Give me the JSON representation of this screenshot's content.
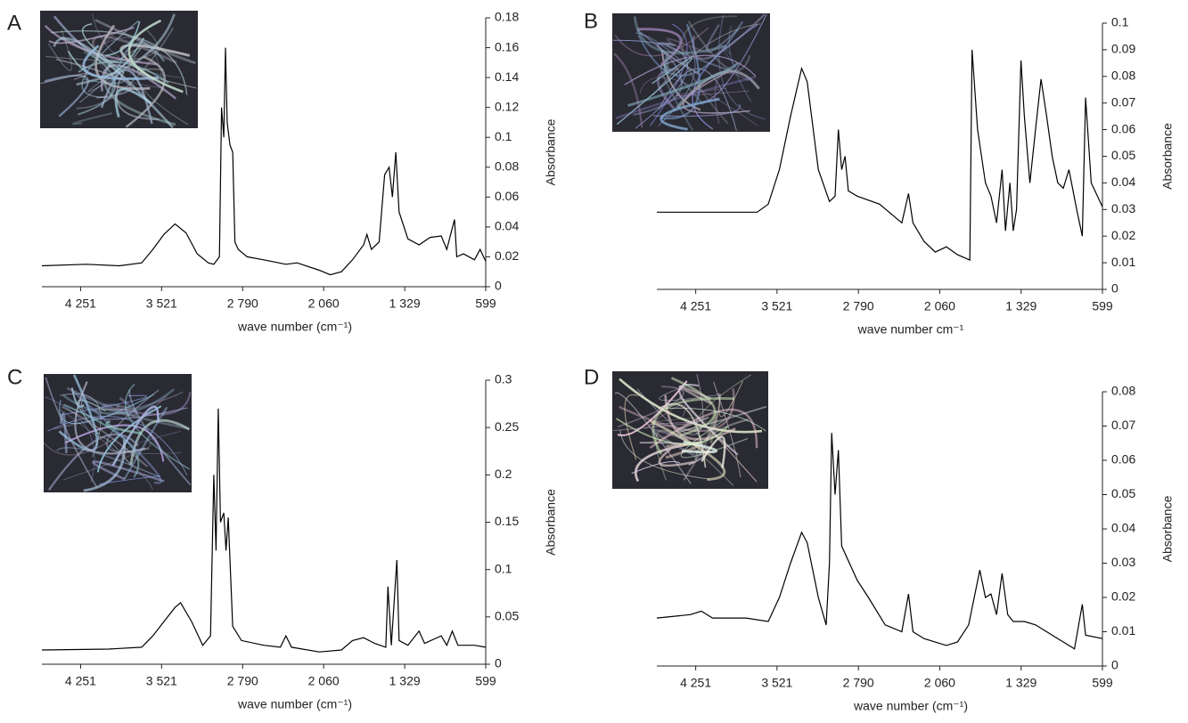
{
  "chart_data": [
    {
      "type": "line",
      "label": "A",
      "x_label": "wave number (cm⁻¹)",
      "y_label": "Absorbance",
      "color": "#000000",
      "xlim": [
        4600,
        599
      ],
      "ylim": [
        0,
        0.18
      ],
      "xticks": [
        {
          "value": 4251,
          "label": "4 251"
        },
        {
          "value": 3521,
          "label": "3 521"
        },
        {
          "value": 2790,
          "label": "2 790"
        },
        {
          "value": 2060,
          "label": "2 060"
        },
        {
          "value": 1329,
          "label": "1 329"
        },
        599
      ],
      "yticks": [
        0,
        0.02,
        0.04,
        0.06,
        0.08,
        0.1,
        0.12,
        0.14,
        0.16,
        0.18
      ],
      "x": [
        4600,
        4200,
        3900,
        3700,
        3600,
        3500,
        3400,
        3300,
        3200,
        3100,
        3050,
        3000,
        2980,
        2960,
        2945,
        2930,
        2905,
        2880,
        2860,
        2830,
        2750,
        2600,
        2400,
        2300,
        2100,
        2000,
        1900,
        1800,
        1700,
        1670,
        1630,
        1560,
        1510,
        1470,
        1440,
        1410,
        1380,
        1300,
        1200,
        1100,
        1000,
        950,
        880,
        860,
        800,
        700,
        650,
        599
      ],
      "values": [
        0.014,
        0.015,
        0.014,
        0.016,
        0.025,
        0.035,
        0.042,
        0.036,
        0.022,
        0.016,
        0.015,
        0.02,
        0.12,
        0.1,
        0.16,
        0.11,
        0.095,
        0.09,
        0.03,
        0.025,
        0.02,
        0.018,
        0.015,
        0.016,
        0.011,
        0.008,
        0.01,
        0.018,
        0.028,
        0.035,
        0.025,
        0.03,
        0.075,
        0.08,
        0.06,
        0.09,
        0.05,
        0.032,
        0.028,
        0.033,
        0.034,
        0.025,
        0.045,
        0.02,
        0.022,
        0.018,
        0.025,
        0.017
      ]
    },
    {
      "type": "line",
      "label": "B",
      "x_label": "wave number cm⁻¹",
      "y_label": "Absorbance",
      "color": "#000000",
      "xlim": [
        4600,
        599
      ],
      "ylim": [
        0,
        0.1
      ],
      "xticks": [
        {
          "value": 4251,
          "label": "4 251"
        },
        {
          "value": 3521,
          "label": "3 521"
        },
        {
          "value": 2790,
          "label": "2 790"
        },
        {
          "value": 2060,
          "label": "2 060"
        },
        {
          "value": 1329,
          "label": "1 329"
        },
        599
      ],
      "yticks": [
        0,
        0.01,
        0.02,
        0.03,
        0.04,
        0.05,
        0.06,
        0.07,
        0.08,
        0.09,
        0.1
      ],
      "x": [
        4600,
        4000,
        3700,
        3600,
        3500,
        3400,
        3300,
        3250,
        3150,
        3050,
        3000,
        2970,
        2940,
        2910,
        2880,
        2800,
        2600,
        2400,
        2340,
        2300,
        2200,
        2100,
        2000,
        1900,
        1790,
        1770,
        1720,
        1650,
        1600,
        1550,
        1500,
        1470,
        1430,
        1400,
        1370,
        1330,
        1300,
        1250,
        1200,
        1150,
        1100,
        1050,
        1000,
        950,
        900,
        830,
        780,
        750,
        700,
        599
      ],
      "values": [
        0.029,
        0.029,
        0.029,
        0.032,
        0.045,
        0.065,
        0.083,
        0.078,
        0.045,
        0.033,
        0.035,
        0.06,
        0.045,
        0.05,
        0.037,
        0.035,
        0.032,
        0.025,
        0.036,
        0.025,
        0.018,
        0.014,
        0.016,
        0.013,
        0.011,
        0.09,
        0.06,
        0.04,
        0.035,
        0.025,
        0.045,
        0.022,
        0.04,
        0.022,
        0.03,
        0.086,
        0.065,
        0.04,
        0.06,
        0.079,
        0.065,
        0.05,
        0.04,
        0.038,
        0.045,
        0.03,
        0.02,
        0.072,
        0.04,
        0.031
      ]
    },
    {
      "type": "line",
      "label": "C",
      "x_label": "wave number (cm⁻¹)",
      "y_label": "Absorbance",
      "color": "#000000",
      "xlim": [
        4600,
        599
      ],
      "ylim": [
        0,
        0.3
      ],
      "xticks": [
        {
          "value": 4251,
          "label": "4 251"
        },
        {
          "value": 3521,
          "label": "3 521"
        },
        {
          "value": 2790,
          "label": "2 790"
        },
        {
          "value": 2060,
          "label": "2 060"
        },
        {
          "value": 1329,
          "label": "1 329"
        },
        599
      ],
      "yticks": [
        0,
        0.05,
        0.1,
        0.15,
        0.2,
        0.25,
        0.3
      ],
      "x": [
        4600,
        4000,
        3700,
        3600,
        3500,
        3400,
        3350,
        3250,
        3150,
        3080,
        3050,
        3030,
        3010,
        2990,
        2960,
        2940,
        2920,
        2880,
        2800,
        2600,
        2450,
        2400,
        2350,
        2100,
        1900,
        1800,
        1700,
        1600,
        1500,
        1480,
        1450,
        1400,
        1380,
        1300,
        1200,
        1150,
        1000,
        950,
        900,
        850,
        700,
        599
      ],
      "values": [
        0.015,
        0.016,
        0.018,
        0.03,
        0.045,
        0.06,
        0.065,
        0.045,
        0.02,
        0.03,
        0.2,
        0.12,
        0.27,
        0.15,
        0.16,
        0.12,
        0.155,
        0.04,
        0.025,
        0.02,
        0.018,
        0.03,
        0.018,
        0.013,
        0.015,
        0.025,
        0.028,
        0.022,
        0.018,
        0.082,
        0.02,
        0.11,
        0.025,
        0.02,
        0.035,
        0.022,
        0.03,
        0.02,
        0.035,
        0.02,
        0.02,
        0.018
      ]
    },
    {
      "type": "line",
      "label": "D",
      "x_label": "wave number (cm⁻¹)",
      "y_label": "Absorbance",
      "color": "#000000",
      "xlim": [
        4600,
        599
      ],
      "ylim": [
        0,
        0.08
      ],
      "xticks": [
        {
          "value": 4251,
          "label": "4 251"
        },
        {
          "value": 3521,
          "label": "3 521"
        },
        {
          "value": 2790,
          "label": "2 790"
        },
        {
          "value": 2060,
          "label": "2 060"
        },
        {
          "value": 1329,
          "label": "1 329"
        },
        599
      ],
      "yticks": [
        0,
        0.01,
        0.02,
        0.03,
        0.04,
        0.05,
        0.06,
        0.07,
        0.08
      ],
      "x": [
        4600,
        4300,
        4200,
        4100,
        3800,
        3600,
        3500,
        3400,
        3300,
        3250,
        3150,
        3080,
        3050,
        3030,
        3000,
        2970,
        2940,
        2800,
        2700,
        2550,
        2400,
        2340,
        2300,
        2200,
        2000,
        1900,
        1800,
        1700,
        1650,
        1600,
        1550,
        1500,
        1450,
        1400,
        1300,
        1200,
        1100,
        1000,
        900,
        850,
        780,
        750,
        599
      ],
      "values": [
        0.014,
        0.015,
        0.016,
        0.014,
        0.014,
        0.013,
        0.02,
        0.03,
        0.039,
        0.036,
        0.02,
        0.012,
        0.03,
        0.068,
        0.05,
        0.063,
        0.035,
        0.025,
        0.02,
        0.012,
        0.01,
        0.021,
        0.01,
        0.008,
        0.006,
        0.007,
        0.012,
        0.028,
        0.02,
        0.021,
        0.015,
        0.027,
        0.015,
        0.013,
        0.013,
        0.012,
        0.01,
        0.008,
        0.006,
        0.005,
        0.018,
        0.009,
        0.008
      ]
    }
  ]
}
